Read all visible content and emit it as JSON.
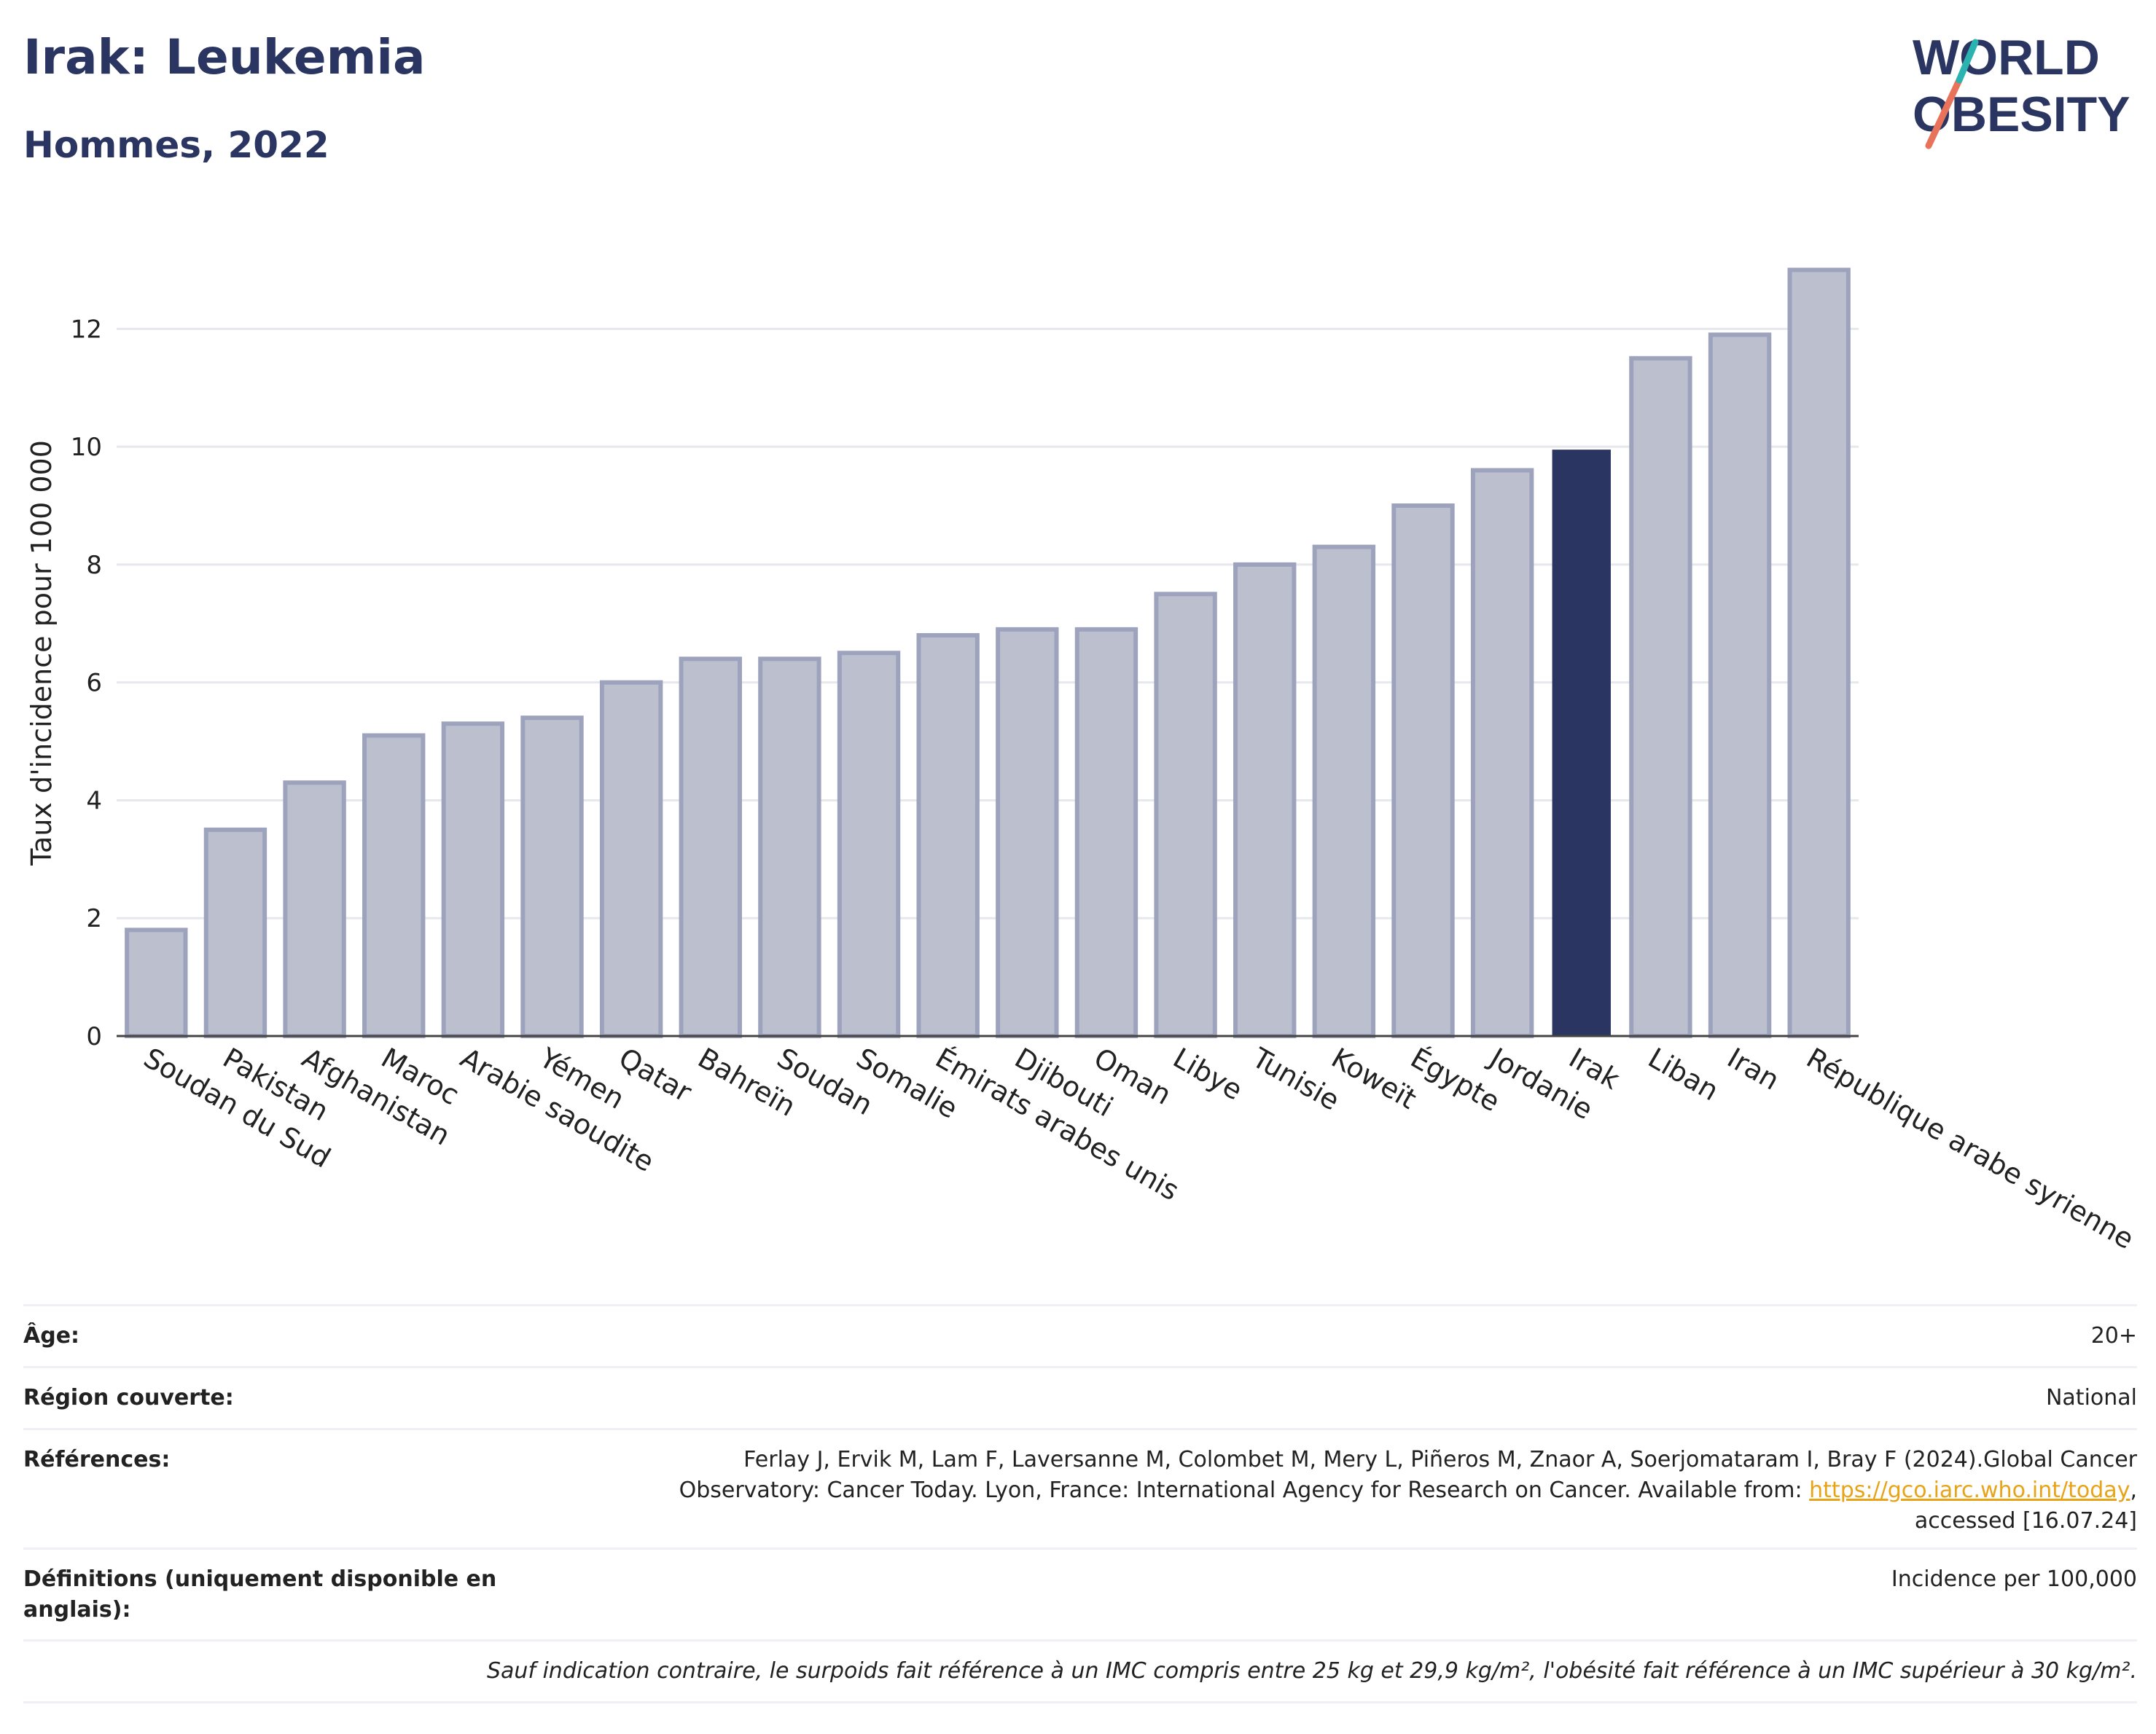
{
  "header": {
    "title": "Irak: Leukemia",
    "subtitle": "Hommes, 2022",
    "logo_line1": "WORLD",
    "logo_line2": "OBESITY"
  },
  "colors": {
    "title": "#2b3561",
    "bar_default": "#bcc0ce",
    "bar_default_stroke": "#9ea3bd",
    "bar_highlight": "#2b3561",
    "grid": "#e6e8ee",
    "logo_teal": "#2bb3b1",
    "logo_coral": "#e8735a"
  },
  "chart_data": {
    "type": "bar",
    "ylabel": "Taux d'incidence pour 100 000",
    "ylim": [
      0,
      13.5
    ],
    "yticks": [
      0,
      2,
      4,
      6,
      8,
      10,
      12
    ],
    "grid": true,
    "highlight": "Irak",
    "categories": [
      "Soudan du Sud",
      "Pakistan",
      "Afghanistan",
      "Maroc",
      "Arabie saoudite",
      "Yémen",
      "Qatar",
      "Bahreïn",
      "Soudan",
      "Somalie",
      "Émirats arabes unis",
      "Djibouti",
      "Oman",
      "Libye",
      "Tunisie",
      "Koweït",
      "Égypte",
      "Jordanie",
      "Irak",
      "Liban",
      "Iran",
      "République arabe syrienne"
    ],
    "values": [
      1.8,
      3.5,
      4.3,
      5.1,
      5.3,
      5.4,
      6.0,
      6.4,
      6.4,
      6.5,
      6.8,
      6.9,
      6.9,
      7.5,
      8.0,
      8.3,
      9.0,
      9.6,
      9.95,
      11.5,
      11.9,
      13.0
    ]
  },
  "info": {
    "age_label": "Âge:",
    "age_value": "20+",
    "region_label": "Région couverte:",
    "region_value": "National",
    "references_label": "Références:",
    "references_line1": "Ferlay J, Ervik M, Lam F, Laversanne M, Colombet M, Mery L, Piñeros M, Znaor A, Soerjomataram I, Bray F (2024).Global Cancer",
    "references_line2_pre": "Observatory: Cancer Today. Lyon, France: International Agency for Research on Cancer. Available from: ",
    "references_link": "https://gco.iarc.who.int/today",
    "references_line2_post": ",",
    "references_line3": "accessed [16.07.24]",
    "definitions_label": "Définitions (uniquement disponible en anglais):",
    "definitions_value": "Incidence per 100,000",
    "footnote": "Sauf indication contraire, le surpoids fait référence à un IMC compris entre 25 kg et 29,9 kg/m², l'obésité fait référence à un IMC supérieur à 30 kg/m²."
  }
}
